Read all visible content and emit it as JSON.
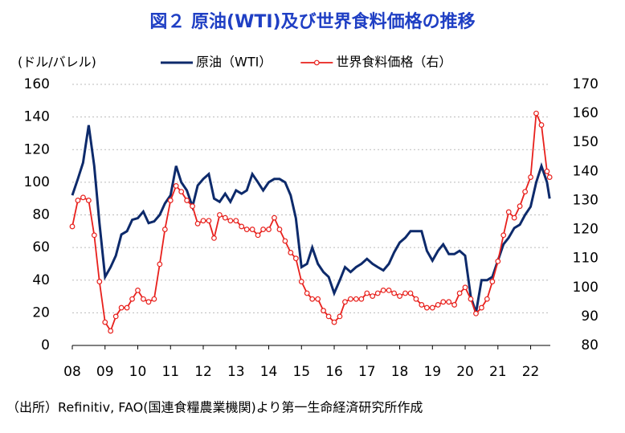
{
  "chart_data": {
    "type": "line",
    "title": "図２ 原油(WTI)及び世界食料価格の推移",
    "y_label": "(ドル/バレル)",
    "source": "（出所）Refinitiv, FAO(国連食糧農業機関)より第一生命経済研究所作成",
    "x": [
      8.0,
      8.17,
      8.33,
      8.5,
      8.67,
      8.83,
      9.0,
      9.17,
      9.33,
      9.5,
      9.67,
      9.83,
      10.0,
      10.17,
      10.33,
      10.5,
      10.67,
      10.83,
      11.0,
      11.17,
      11.33,
      11.5,
      11.67,
      11.83,
      12.0,
      12.17,
      12.33,
      12.5,
      12.67,
      12.83,
      13.0,
      13.17,
      13.33,
      13.5,
      13.67,
      13.83,
      14.0,
      14.17,
      14.33,
      14.5,
      14.67,
      14.83,
      15.0,
      15.17,
      15.33,
      15.5,
      15.67,
      15.83,
      16.0,
      16.17,
      16.33,
      16.5,
      16.67,
      16.83,
      17.0,
      17.17,
      17.33,
      17.5,
      17.67,
      17.83,
      18.0,
      18.17,
      18.33,
      18.5,
      18.67,
      18.83,
      19.0,
      19.17,
      19.33,
      19.5,
      19.67,
      19.83,
      20.0,
      20.17,
      20.33,
      20.5,
      20.67,
      20.83,
      21.0,
      21.17,
      21.33,
      21.5,
      21.67,
      21.83,
      22.0,
      22.17,
      22.33,
      22.5,
      22.58
    ],
    "series": [
      {
        "name": "原油（WTI）",
        "color": "#0d2a6b",
        "axis": "y",
        "marker": false,
        "values": [
          92,
          102,
          112,
          135,
          110,
          75,
          42,
          48,
          55,
          68,
          70,
          77,
          78,
          82,
          75,
          76,
          80,
          87,
          92,
          110,
          100,
          95,
          85,
          98,
          102,
          105,
          90,
          88,
          93,
          88,
          95,
          93,
          95,
          105,
          100,
          95,
          100,
          102,
          102,
          100,
          92,
          78,
          48,
          50,
          60,
          50,
          45,
          42,
          32,
          40,
          48,
          45,
          48,
          50,
          53,
          50,
          48,
          46,
          50,
          57,
          63,
          66,
          70,
          70,
          70,
          58,
          52,
          58,
          62,
          56,
          56,
          58,
          55,
          30,
          20,
          40,
          40,
          42,
          52,
          62,
          66,
          72,
          74,
          80,
          85,
          100,
          110,
          100,
          90
        ]
      },
      {
        "name": "世界食料価格（右）",
        "color": "#e8201c",
        "axis": "y2",
        "marker": true,
        "values": [
          121,
          130,
          131,
          130,
          118,
          102,
          88,
          85,
          90,
          93,
          93,
          96,
          99,
          96,
          95,
          96,
          108,
          120,
          130,
          135,
          133,
          130,
          128,
          122,
          123,
          123,
          117,
          125,
          124,
          123,
          123,
          121,
          120,
          120,
          118,
          120,
          120,
          124,
          120,
          116,
          112,
          110,
          102,
          98,
          96,
          96,
          92,
          90,
          88,
          90,
          95,
          96,
          96,
          96,
          98,
          97,
          98,
          99,
          99,
          98,
          97,
          98,
          98,
          96,
          94,
          93,
          93,
          94,
          95,
          95,
          94,
          98,
          100,
          96,
          91,
          93,
          96,
          102,
          109,
          118,
          126,
          124,
          128,
          133,
          138,
          160,
          156,
          140,
          138
        ]
      }
    ],
    "xlim": [
      8,
      22.6
    ],
    "xticks": [
      {
        "value": 8,
        "label": "08"
      },
      {
        "value": 9,
        "label": "09"
      },
      10,
      11,
      12,
      13,
      14,
      15,
      16,
      17,
      18,
      19,
      20,
      21,
      22
    ],
    "ylim": [
      0,
      160
    ],
    "yticks": [
      0,
      20,
      40,
      60,
      80,
      100,
      120,
      140,
      160
    ],
    "y2lim": [
      80,
      170
    ],
    "y2ticks": [
      80,
      90,
      100,
      110,
      120,
      130,
      140,
      150,
      160,
      170
    ],
    "grid": true,
    "legend": "top"
  }
}
